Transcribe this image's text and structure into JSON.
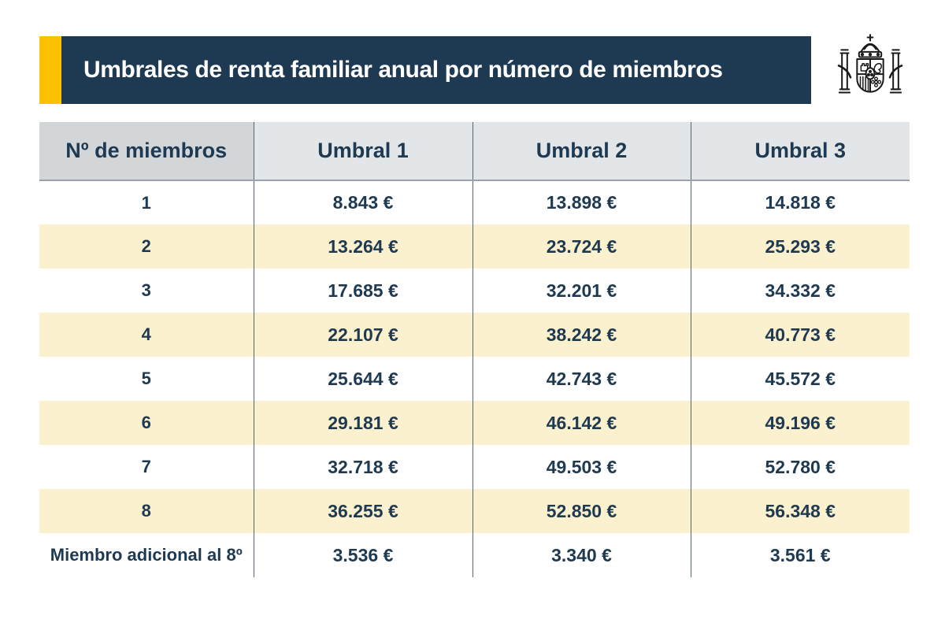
{
  "header": {
    "title": "Umbrales de renta familiar anual por número de miembros",
    "accent_color": "#fcc200",
    "banner_color": "#1d3a52",
    "title_color": "#ffffff",
    "logo": "spain-coat-of-arms"
  },
  "table": {
    "columns": [
      "Nº de miembros",
      "Umbral 1",
      "Umbral 2",
      "Umbral 3"
    ],
    "rows": [
      {
        "label": "1",
        "values": [
          "8.843 €",
          "13.898 €",
          "14.818 €"
        ]
      },
      {
        "label": "2",
        "values": [
          "13.264 €",
          "23.724 €",
          "25.293 €"
        ]
      },
      {
        "label": "3",
        "values": [
          "17.685 €",
          "32.201 €",
          "34.332 €"
        ]
      },
      {
        "label": "4",
        "values": [
          "22.107 €",
          "38.242 €",
          "40.773 €"
        ]
      },
      {
        "label": "5",
        "values": [
          "25.644 €",
          "42.743 €",
          "45.572 €"
        ]
      },
      {
        "label": "6",
        "values": [
          "29.181 €",
          "46.142 €",
          "49.196 €"
        ]
      },
      {
        "label": "7",
        "values": [
          "32.718 €",
          "49.503 €",
          "52.780 €"
        ]
      },
      {
        "label": "8",
        "values": [
          "36.255 €",
          "52.850 €",
          "56.348 €"
        ]
      },
      {
        "label": "Miembro adicional al 8º",
        "values": [
          "3.536 €",
          "3.340 €",
          "3.561 €"
        ]
      }
    ],
    "colors": {
      "text": "#1d3a52",
      "stripe": "#fcf1ce",
      "header_first_bg": "#d2d6d9",
      "header_bg": "#e3e6e9",
      "divider": "#556571",
      "header_underline": "#9aa1a9"
    }
  },
  "chart_data": {
    "type": "table",
    "title": "Umbrales de renta familiar anual por número de miembros",
    "columns": [
      "Nº de miembros",
      "Umbral 1",
      "Umbral 2",
      "Umbral 3"
    ],
    "unit": "EUR",
    "rows": [
      [
        "1",
        8843,
        13898,
        14818
      ],
      [
        "2",
        13264,
        23724,
        25293
      ],
      [
        "3",
        17685,
        32201,
        34332
      ],
      [
        "4",
        22107,
        38242,
        40773
      ],
      [
        "5",
        25644,
        42743,
        45572
      ],
      [
        "6",
        29181,
        46142,
        49196
      ],
      [
        "7",
        32718,
        49503,
        52780
      ],
      [
        "8",
        36255,
        52850,
        56348
      ],
      [
        "Miembro adicional al 8º",
        3536,
        3340,
        3561
      ]
    ]
  }
}
